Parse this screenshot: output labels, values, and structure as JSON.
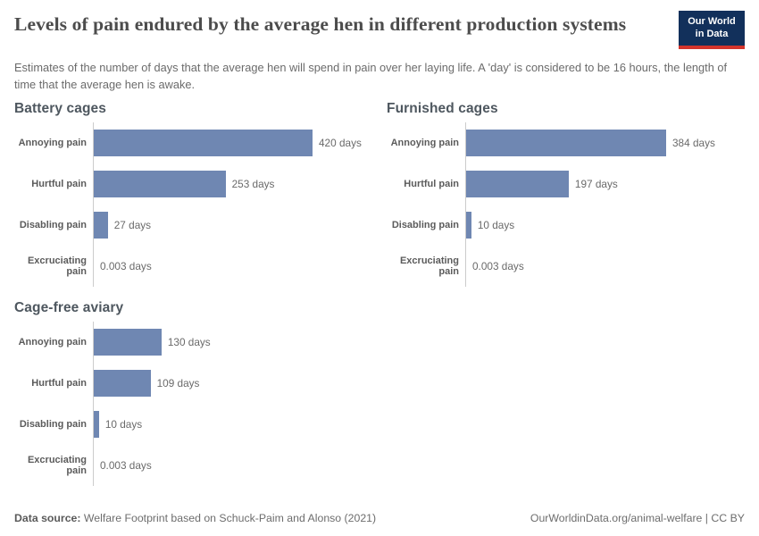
{
  "header": {
    "title": "Levels of pain endured by the average hen in different production systems",
    "subtitle": "Estimates of the number of days that the average hen will spend in pain over her laying life. A 'day' is considered to be 16 hours, the length of time that the average hen is awake.",
    "logo": {
      "line1": "Our World",
      "line2": "in Data"
    }
  },
  "colors": {
    "bar": "#6f87b2",
    "axis_line": "#cccccc",
    "logo_navy": "#12305b",
    "logo_red": "#d3342c"
  },
  "chart_data": [
    {
      "type": "bar",
      "orientation": "horizontal",
      "title": "Battery cages",
      "categories": [
        "Annoying pain",
        "Hurtful pain",
        "Disabling pain",
        "Excruciating pain"
      ],
      "values": [
        420,
        253,
        27,
        0.003
      ],
      "value_labels": [
        "420 days",
        "253 days",
        "27 days",
        "0.003 days"
      ],
      "xlim": [
        0,
        420
      ],
      "grid": false,
      "legend": false
    },
    {
      "type": "bar",
      "orientation": "horizontal",
      "title": "Furnished cages",
      "categories": [
        "Annoying pain",
        "Hurtful pain",
        "Disabling pain",
        "Excruciating pain"
      ],
      "values": [
        384,
        197,
        10,
        0.003
      ],
      "value_labels": [
        "384 days",
        "197 days",
        "10 days",
        "0.003 days"
      ],
      "xlim": [
        0,
        420
      ],
      "grid": false,
      "legend": false
    },
    {
      "type": "bar",
      "orientation": "horizontal",
      "title": "Cage-free aviary",
      "categories": [
        "Annoying pain",
        "Hurtful pain",
        "Disabling pain",
        "Excruciating pain"
      ],
      "values": [
        130,
        109,
        10,
        0.003
      ],
      "value_labels": [
        "130 days",
        "109 days",
        "10 days",
        "0.003 days"
      ],
      "xlim": [
        0,
        420
      ],
      "grid": false,
      "legend": false
    }
  ],
  "footer": {
    "source_label": "Data source:",
    "source_text": " Welfare Footprint based on Schuck-Paim and Alonso (2021)",
    "right_text": "OurWorldinData.org/animal-welfare | CC BY"
  }
}
